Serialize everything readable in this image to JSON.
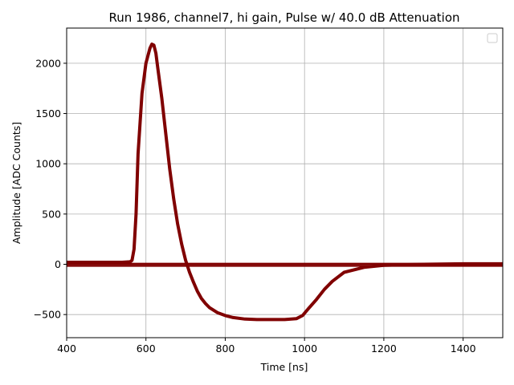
{
  "chart_data": {
    "type": "line",
    "title": "Run 1986, channel7, hi gain, Pulse w/ 40.0 dB Attenuation",
    "xlabel": "Time [ns]",
    "ylabel": "Amplitude [ADC Counts]",
    "xlim": [
      400,
      1500
    ],
    "ylim": [
      -730,
      2350
    ],
    "xticks": [
      400,
      600,
      800,
      1000,
      1200,
      1400
    ],
    "xtick_labels": [
      "400",
      "600",
      "800",
      "1000",
      "1200",
      "1400"
    ],
    "yticks": [
      -500,
      0,
      500,
      1000,
      1500,
      2000
    ],
    "ytick_labels": [
      "−500",
      "0",
      "500",
      "1000",
      "1500",
      "2000"
    ],
    "grid": true,
    "legend": {
      "placement": "top-right",
      "entries": []
    },
    "color": "#800000",
    "series": [
      {
        "x": [
          400,
          540,
          560,
          565,
          570,
          575,
          580,
          590,
          600,
          610,
          615,
          620,
          625,
          630,
          640,
          650,
          660,
          670,
          680,
          690,
          700,
          710,
          720,
          730,
          740,
          750,
          760,
          780,
          800,
          820,
          850,
          880,
          900,
          950,
          980,
          995,
          1010,
          1030,
          1050,
          1070,
          1100,
          1150,
          1200,
          1300,
          1400,
          1500
        ],
        "y": [
          20,
          20,
          25,
          40,
          150,
          500,
          1100,
          1700,
          2000,
          2150,
          2190,
          2180,
          2100,
          1950,
          1650,
          1300,
          950,
          650,
          400,
          200,
          40,
          -80,
          -180,
          -270,
          -340,
          -390,
          -430,
          -480,
          -510,
          -530,
          -545,
          -550,
          -550,
          -550,
          -540,
          -510,
          -440,
          -350,
          -250,
          -170,
          -80,
          -30,
          -10,
          0,
          5,
          5
        ]
      },
      {
        "x": [
          400,
          600,
          800,
          1000,
          1200,
          1400,
          1500
        ],
        "y": [
          -15,
          -15,
          -15,
          -15,
          -15,
          -15,
          -15
        ]
      },
      {
        "x": [
          400,
          600,
          800,
          1000,
          1200,
          1400,
          1500
        ],
        "y": [
          5,
          5,
          5,
          5,
          5,
          5,
          5
        ]
      }
    ]
  }
}
